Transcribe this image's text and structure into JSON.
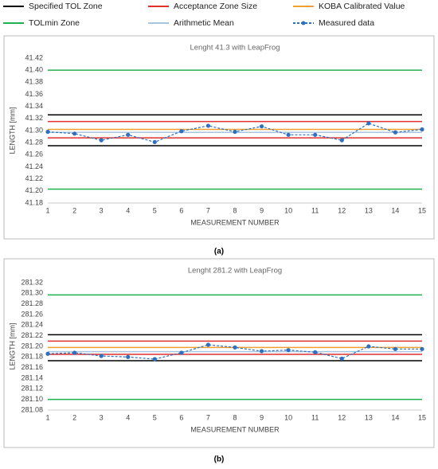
{
  "chart_data": [
    {
      "type": "line",
      "title": "Lenght 41.3 with LeapFrog",
      "caption": "(a)",
      "ylabel": "LENGTH [mm]",
      "xlabel": "MEASUREMENT NUMBER",
      "x": [
        1,
        2,
        3,
        4,
        5,
        6,
        7,
        8,
        9,
        10,
        11,
        12,
        13,
        14,
        15
      ],
      "xlim": [
        1,
        15
      ],
      "xticks": [
        1,
        2,
        3,
        4,
        5,
        6,
        7,
        8,
        9,
        10,
        11,
        12,
        13,
        14,
        15
      ],
      "ylim": [
        41.18,
        41.42
      ],
      "yticks": [
        41.18,
        {
          "value": 41.2,
          "label": "41.20"
        },
        41.22,
        41.24,
        41.26,
        41.28,
        {
          "value": 41.3,
          "label": "41.30"
        },
        41.32,
        41.34,
        41.36,
        41.38,
        {
          "value": 41.4,
          "label": "41.40"
        },
        41.42
      ],
      "grid": false,
      "series": [
        {
          "name": "Specified TOL Zone",
          "color": "#000000",
          "levels": [
            41.326,
            41.275
          ]
        },
        {
          "name": "Acceptance Zone Size",
          "color": "#e03030",
          "levels": [
            41.315,
            41.288
          ]
        },
        {
          "name": "KOBA Calibrated Value",
          "color": "#f0a030",
          "levels": [
            41.302
          ]
        },
        {
          "name": "TOLmin Zone",
          "color": "#20b050",
          "levels": [
            41.4,
            41.203
          ]
        },
        {
          "name": "Arithmetic Mean",
          "color": "#a8c4e0",
          "levels": [
            41.297
          ]
        },
        {
          "name": "Measured data",
          "color": "#2f6fbf",
          "dashed": true,
          "marker": true,
          "values": [
            41.298,
            41.295,
            41.284,
            41.293,
            41.281,
            41.299,
            41.308,
            41.298,
            41.307,
            41.293,
            41.293,
            41.284,
            41.312,
            41.297,
            41.302
          ]
        }
      ]
    },
    {
      "type": "line",
      "title": "Lenght 281.2 with LeapFrog",
      "caption": "(b)",
      "ylabel": "LENGTH [mm]",
      "xlabel": "MEASUREMENT NUMBER",
      "x": [
        1,
        2,
        3,
        4,
        5,
        6,
        7,
        8,
        9,
        10,
        11,
        12,
        13,
        14,
        15
      ],
      "xlim": [
        1,
        15
      ],
      "xticks": [
        1,
        2,
        3,
        4,
        5,
        6,
        7,
        8,
        9,
        10,
        11,
        12,
        13,
        14,
        15
      ],
      "ylim": [
        281.08,
        281.32
      ],
      "yticks": [
        281.08,
        {
          "value": 281.1,
          "label": "281.10"
        },
        281.12,
        281.14,
        281.16,
        281.18,
        {
          "value": 281.2,
          "label": "281.20"
        },
        281.22,
        281.24,
        281.26,
        281.28,
        {
          "value": 281.3,
          "label": "281.30"
        },
        281.32
      ],
      "grid": false,
      "series": [
        {
          "name": "Specified TOL Zone",
          "color": "#000000",
          "levels": [
            281.222,
            281.173
          ]
        },
        {
          "name": "Acceptance Zone Size",
          "color": "#e03030",
          "levels": [
            281.21,
            281.185
          ]
        },
        {
          "name": "KOBA Calibrated Value",
          "color": "#f0a030",
          "levels": [
            281.198
          ]
        },
        {
          "name": "TOLmin Zone",
          "color": "#20b050",
          "levels": [
            281.297,
            281.1
          ]
        },
        {
          "name": "Arithmetic Mean",
          "color": "#a8c4e0",
          "levels": [
            281.19
          ]
        },
        {
          "name": "Measured data",
          "color": "#2f6fbf",
          "dashed": true,
          "marker": true,
          "values": [
            281.186,
            281.188,
            281.182,
            281.18,
            281.176,
            281.188,
            281.203,
            281.198,
            281.191,
            281.193,
            281.189,
            281.177,
            281.2,
            281.195,
            281.195
          ]
        }
      ]
    }
  ]
}
